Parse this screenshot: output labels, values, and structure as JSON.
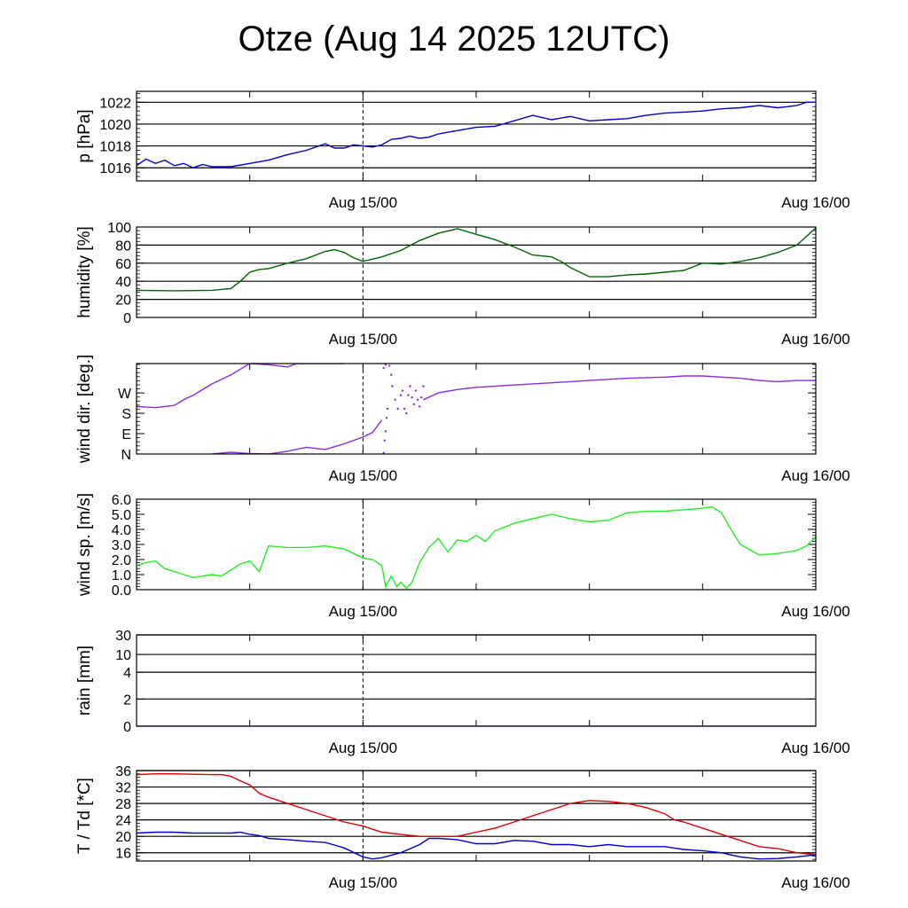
{
  "title": "Otze (Aug 14 2025 12UTC)",
  "chart_data": [
    {
      "type": "line",
      "ylabel": "p [hPa]",
      "x_ticks": [
        "Aug 15/00",
        "Aug 16/00"
      ],
      "x_range_hours": [
        0,
        36
      ],
      "marker_hour": 12,
      "ylim": [
        1014.8,
        1023
      ],
      "yticks": [
        1016,
        1018,
        1020,
        1022
      ],
      "ytick_labels": [
        "1016",
        "1018",
        "1020",
        "1022"
      ],
      "gridlines": [
        1016,
        1018,
        1020,
        1022
      ],
      "series": [
        {
          "color": "#0000cc",
          "style": "line",
          "x": [
            0,
            0.5,
            1,
            1.5,
            2,
            2.5,
            3,
            3.5,
            4,
            5,
            6,
            7,
            8,
            9,
            10,
            10.5,
            11,
            11.5,
            12,
            12.5,
            13,
            13.5,
            14,
            14.5,
            15,
            15.5,
            16,
            17,
            18,
            19,
            20,
            21,
            22,
            23,
            24,
            25,
            26,
            27,
            28,
            29,
            30,
            31,
            32,
            33,
            34,
            35,
            35.5,
            36
          ],
          "y": [
            1016.2,
            1016.8,
            1016.4,
            1016.7,
            1016.2,
            1016.4,
            1016.0,
            1016.3,
            1016.1,
            1016.1,
            1016.4,
            1016.7,
            1017.2,
            1017.6,
            1018.2,
            1017.8,
            1017.8,
            1018.1,
            1018.0,
            1017.9,
            1018.1,
            1018.6,
            1018.7,
            1018.9,
            1018.7,
            1018.8,
            1019.1,
            1019.4,
            1019.7,
            1019.8,
            1020.3,
            1020.8,
            1020.4,
            1020.7,
            1020.3,
            1020.4,
            1020.5,
            1020.8,
            1021.0,
            1021.1,
            1021.2,
            1021.4,
            1021.5,
            1021.7,
            1021.5,
            1021.7,
            1022.0,
            1022.0
          ]
        }
      ]
    },
    {
      "type": "line",
      "ylabel": "humidity [%]",
      "x_ticks": [
        "Aug 15/00",
        "Aug 16/00"
      ],
      "x_range_hours": [
        0,
        36
      ],
      "marker_hour": 12,
      "ylim": [
        0,
        100
      ],
      "yticks": [
        0,
        20,
        40,
        60,
        80,
        100
      ],
      "ytick_labels": [
        "0",
        "20",
        "40",
        "60",
        "80",
        "100"
      ],
      "gridlines": [
        20,
        40,
        60,
        80
      ],
      "series": [
        {
          "color": "#006400",
          "style": "line",
          "x": [
            0,
            2,
            4,
            5,
            5.5,
            6,
            6.5,
            7,
            8,
            9,
            10,
            10.5,
            11,
            11.5,
            12,
            13,
            14,
            15,
            16,
            17,
            18,
            19,
            20,
            21,
            22,
            22.5,
            23,
            24,
            25,
            26,
            27,
            28,
            29,
            30,
            31,
            32,
            33,
            34,
            35,
            36
          ],
          "y": [
            30,
            29.5,
            30,
            32,
            40,
            50,
            53,
            54,
            60,
            65,
            73,
            75,
            72,
            66,
            62,
            67,
            74,
            85,
            93,
            98,
            92,
            86,
            78,
            69,
            67,
            62,
            55,
            45,
            45,
            47,
            48,
            50,
            52,
            60,
            59,
            62,
            66,
            72,
            80,
            99
          ]
        }
      ]
    },
    {
      "type": "scatter",
      "ylabel": "wind dir. [deg.]",
      "x_ticks": [
        "Aug 15/00",
        "Aug 16/00"
      ],
      "x_range_hours": [
        0,
        36
      ],
      "marker_hour": 12,
      "ylim": [
        0,
        400
      ],
      "yticks": [
        0,
        90,
        180,
        270
      ],
      "ytick_labels": [
        "N",
        "E",
        "S",
        "W"
      ],
      "gridlines": [],
      "series": [
        {
          "color": "#8a2be2",
          "style": "line",
          "x": [
            0,
            1,
            2,
            2.5,
            3,
            4,
            5,
            6,
            7,
            8,
            8.5
          ],
          "y": [
            210,
            205,
            215,
            240,
            260,
            310,
            350,
            400,
            395,
            385,
            400
          ]
        },
        {
          "color": "#8a2be2",
          "style": "line",
          "x": [
            8.5,
            9,
            10,
            11
          ],
          "y": [
            400,
            400,
            400,
            400
          ]
        },
        {
          "color": "#8a2be2",
          "style": "line",
          "x": [
            4,
            5,
            6,
            7,
            8,
            9,
            10,
            11,
            12,
            12.5,
            13
          ],
          "y": [
            0,
            8,
            2,
            0,
            12,
            30,
            20,
            45,
            75,
            95,
            150
          ]
        },
        {
          "color": "#8a2be2",
          "style": "points",
          "x": [
            13.1,
            13.15,
            13.2,
            13.25,
            13.3,
            13.4,
            13.5,
            13.55,
            13.7,
            13.85,
            14.0,
            14.1,
            14.2,
            14.3,
            14.4,
            14.5,
            14.6,
            14.7,
            14.8,
            14.9,
            15.0,
            15.1,
            15.2,
            13.1,
            13.2
          ],
          "y": [
            5,
            60,
            100,
            160,
            200,
            390,
            350,
            300,
            240,
            200,
            260,
            280,
            200,
            180,
            260,
            300,
            250,
            220,
            280,
            240,
            210,
            250,
            300,
            380,
            395
          ]
        },
        {
          "color": "#8a2be2",
          "style": "line",
          "x": [
            15.2,
            16,
            17,
            18,
            20,
            22,
            24,
            26,
            28,
            29,
            30,
            31,
            32,
            33,
            34,
            35,
            36
          ],
          "y": [
            240,
            270,
            285,
            295,
            305,
            315,
            325,
            335,
            340,
            345,
            345,
            340,
            335,
            325,
            320,
            325,
            325
          ]
        }
      ]
    },
    {
      "type": "line",
      "ylabel": "wind sp. [m/s]",
      "x_ticks": [
        "Aug 15/00",
        "Aug 16/00"
      ],
      "x_range_hours": [
        0,
        36
      ],
      "marker_hour": 12,
      "ylim": [
        0,
        6
      ],
      "yticks": [
        0,
        1,
        2,
        3,
        4,
        5,
        6
      ],
      "ytick_labels": [
        "0.0",
        "1.0",
        "2.0",
        "3.0",
        "4.0",
        "5.0",
        "6.0"
      ],
      "gridlines": [],
      "series": [
        {
          "color": "#22ee22",
          "style": "line",
          "x": [
            0,
            0.5,
            1,
            1.5,
            2,
            2.5,
            3,
            3.5,
            4,
            4.5,
            5,
            5.5,
            6,
            6.5,
            7,
            8,
            9,
            10,
            11,
            12,
            12.5,
            13,
            13.2,
            13.5,
            13.8,
            14,
            14.3,
            14.6,
            15,
            15.5,
            16,
            16.5,
            17,
            17.5,
            18,
            18.5,
            19,
            20,
            21,
            22,
            23,
            24,
            25,
            26,
            27,
            28,
            29,
            30,
            30.5,
            31,
            31.5,
            32,
            33,
            34,
            35,
            35.5,
            36
          ],
          "y": [
            1.6,
            1.8,
            1.9,
            1.4,
            1.2,
            1.0,
            0.8,
            0.9,
            1.0,
            0.9,
            1.3,
            1.7,
            1.9,
            1.2,
            2.9,
            2.8,
            2.8,
            2.9,
            2.7,
            2.1,
            2.0,
            1.6,
            0.2,
            0.9,
            0.2,
            0.5,
            0.1,
            0.5,
            1.8,
            2.8,
            3.4,
            2.5,
            3.3,
            3.2,
            3.6,
            3.2,
            3.9,
            4.4,
            4.7,
            5.0,
            4.7,
            4.5,
            4.6,
            5.1,
            5.2,
            5.2,
            5.3,
            5.4,
            5.5,
            5.1,
            4.0,
            3.0,
            2.3,
            2.4,
            2.6,
            2.9,
            3.5
          ]
        }
      ]
    },
    {
      "type": "line",
      "ylabel": "rain [mm]",
      "x_ticks": [
        "Aug 15/00",
        "Aug 16/00"
      ],
      "x_range_hours": [
        0,
        36
      ],
      "marker_hour": 12,
      "scale": "piecewise",
      "yticks": [
        0,
        2,
        4,
        10,
        30
      ],
      "ytick_labels": [
        "0",
        "2",
        "4",
        "10",
        "30"
      ],
      "gridlines": [
        2,
        4,
        10,
        30
      ],
      "series": [
        {
          "color": "#0000aa",
          "style": "line",
          "x": [
            0,
            36
          ],
          "y": [
            0,
            0
          ]
        }
      ]
    },
    {
      "type": "line",
      "ylabel": "T / Td [*C]",
      "x_ticks": [
        "Aug 15/00",
        "Aug 16/00"
      ],
      "x_range_hours": [
        0,
        36
      ],
      "marker_hour": 12,
      "ylim": [
        14,
        36
      ],
      "yticks": [
        16,
        20,
        24,
        28,
        32,
        36
      ],
      "ytick_labels": [
        "16",
        "20",
        "24",
        "28",
        "32",
        "36"
      ],
      "gridlines": [
        16,
        20,
        24,
        28,
        32,
        36
      ],
      "series": [
        {
          "color": "#dd0000",
          "style": "line",
          "x": [
            0,
            1,
            2,
            3,
            4,
            4.5,
            5,
            5.5,
            6,
            6.5,
            7,
            8,
            9,
            10,
            11,
            12,
            13,
            14,
            15,
            16,
            17,
            18,
            19,
            20,
            21,
            22,
            23,
            24,
            25,
            26,
            27,
            28,
            28.5,
            29,
            30,
            31,
            32,
            33,
            34,
            35,
            36
          ],
          "y": [
            35,
            35.2,
            35.2,
            35.1,
            35,
            35,
            34.6,
            33.5,
            32.5,
            30.5,
            29.5,
            28,
            26.5,
            25,
            23.5,
            22.5,
            21,
            20.5,
            20,
            20,
            20,
            21,
            22,
            23.5,
            25,
            26.5,
            28,
            28.7,
            28.5,
            28,
            27,
            25.5,
            24,
            23.5,
            22,
            20.5,
            19,
            17.5,
            17,
            16,
            15.5
          ]
        },
        {
          "color": "#0000cc",
          "style": "line",
          "x": [
            0,
            1,
            2,
            3,
            4,
            5,
            5.5,
            6,
            6.5,
            7,
            8,
            9,
            10,
            11,
            12,
            12.5,
            13,
            14,
            15,
            15.5,
            16,
            17,
            18,
            19,
            20,
            21,
            22,
            23,
            24,
            25,
            26,
            27,
            28,
            29,
            30,
            31,
            32,
            33,
            34,
            35,
            36
          ],
          "y": [
            20.8,
            21,
            21,
            20.8,
            20.8,
            20.8,
            21,
            20.5,
            20.2,
            19.5,
            19.2,
            18.8,
            18.5,
            17.2,
            15,
            14.5,
            14.8,
            16,
            18,
            19.5,
            19.5,
            19.2,
            18.2,
            18.2,
            19,
            18.8,
            18,
            18,
            17.5,
            18,
            17.5,
            17.5,
            17.5,
            16.8,
            16.5,
            16,
            15,
            14.5,
            14.6,
            15,
            15.5
          ]
        }
      ]
    }
  ]
}
